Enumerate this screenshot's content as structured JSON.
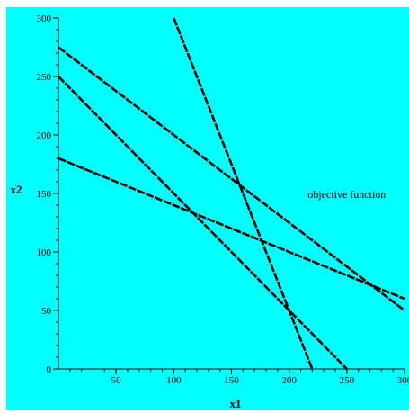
{
  "colors": {
    "background": "#00FFFF",
    "line": "#000000"
  },
  "chart_data": {
    "type": "line",
    "title": "",
    "xlabel": "x1",
    "ylabel": "x2",
    "xlim": [
      0,
      300
    ],
    "ylim": [
      0,
      300
    ],
    "x_ticks": [
      50,
      100,
      150,
      200,
      250,
      300
    ],
    "y_ticks": [
      0,
      50,
      100,
      150,
      200,
      250,
      300
    ],
    "grid": false,
    "legend": "none",
    "series": [
      {
        "points": [
          [
            0,
            275
          ],
          [
            300,
            50
          ]
        ]
      },
      {
        "points": [
          [
            0,
            250
          ],
          [
            250,
            0
          ]
        ]
      },
      {
        "points": [
          [
            0,
            180
          ],
          [
            300,
            60
          ]
        ]
      },
      {
        "points": [
          [
            100,
            300
          ],
          [
            220,
            0
          ]
        ]
      }
    ],
    "annotations": [
      {
        "text": "objective function",
        "x": 250,
        "y": 146
      }
    ]
  }
}
